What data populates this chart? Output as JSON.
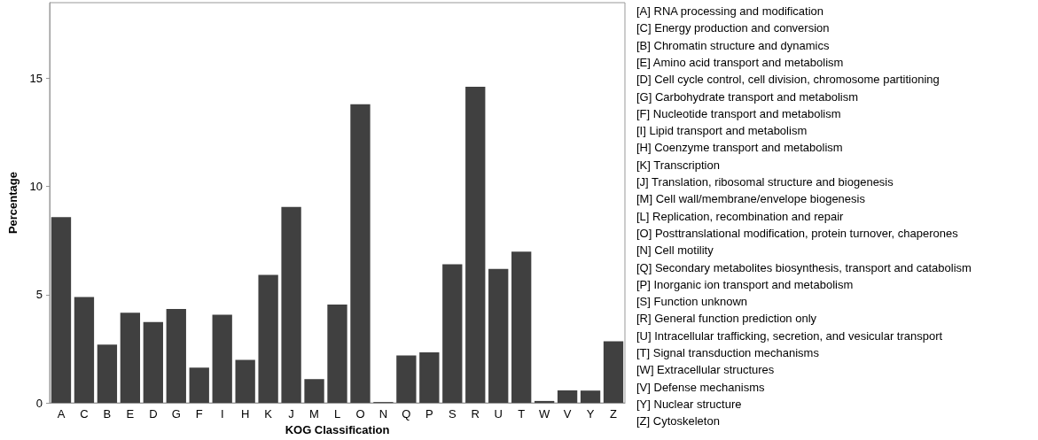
{
  "chart_data": {
    "type": "bar",
    "xlabel": "KOG Classification",
    "ylabel": "Percentage",
    "categories": [
      "A",
      "C",
      "B",
      "E",
      "D",
      "G",
      "F",
      "I",
      "H",
      "K",
      "J",
      "M",
      "L",
      "O",
      "N",
      "Q",
      "P",
      "S",
      "R",
      "U",
      "T",
      "W",
      "V",
      "Y",
      "Z"
    ],
    "values": [
      8.59,
      4.89,
      2.69,
      4.17,
      3.74,
      4.34,
      1.63,
      4.08,
      1.99,
      5.92,
      9.06,
      1.1,
      4.55,
      13.8,
      0.04,
      2.19,
      2.34,
      6.41,
      14.61,
      6.19,
      6.99,
      0.09,
      0.58,
      0.57,
      2.85
    ],
    "color": "#404040",
    "ylim": [
      0,
      18.5
    ],
    "yticks": [
      0,
      5,
      10,
      15
    ],
    "grid": false,
    "annotations": [
      "[A] RNA processing and modification",
      "[C] Energy production and conversion",
      "[B] Chromatin structure and dynamics",
      "[E] Amino acid transport and metabolism",
      "[D] Cell cycle control, cell division, chromosome partitioning",
      "[G] Carbohydrate transport and metabolism",
      "[F] Nucleotide transport and metabolism",
      "[I] Lipid transport and metabolism",
      "[H] Coenzyme transport and metabolism",
      "[K] Transcription",
      "[J] Translation, ribosomal structure and biogenesis",
      "[M] Cell wall/membrane/envelope biogenesis",
      "[L] Replication, recombination and repair",
      "[O] Posttranslational modification, protein turnover, chaperones",
      "[N] Cell motility",
      "[Q] Secondary metabolites biosynthesis, transport and catabolism",
      "[P] Inorganic ion transport and metabolism",
      "[S] Function unknown",
      "[R] General function prediction only",
      "[U] Intracellular trafficking, secretion, and vesicular transport",
      "[T] Signal transduction mechanisms",
      "[W] Extracellular structures",
      "[V] Defense mechanisms",
      "[Y] Nuclear structure",
      "[Z] Cytoskeleton"
    ]
  }
}
